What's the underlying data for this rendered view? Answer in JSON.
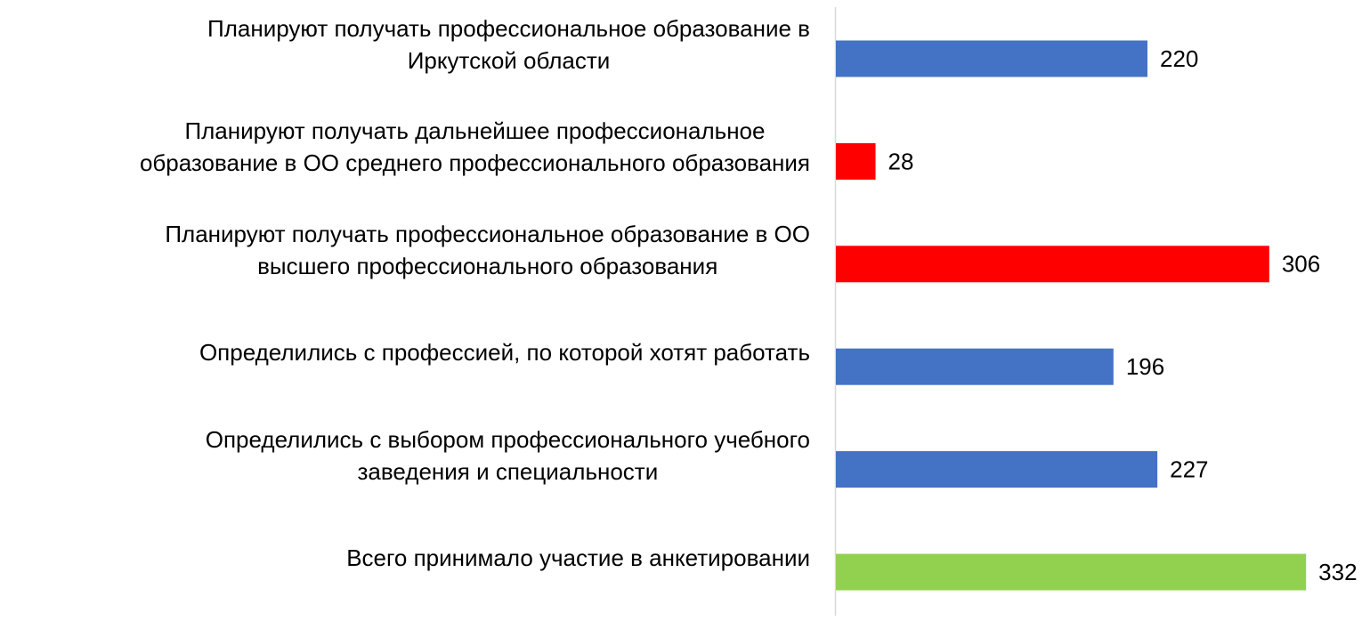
{
  "chart_data": {
    "type": "barh",
    "categories": [
      "Планируют получать профессиональное образование в\nИркутской области",
      "Планируют получать дальнейшее профессиональное\nобразование в ОО среднего профессионального образования",
      "Планируют получать профессиональное образование в ОО\nвысшего профессионального образования",
      "Определились с профессией, по которой хотят работать",
      "Определились с выбором профессионального учебного\nзаведения и специальности",
      "Всего принимало участие в анкетировании"
    ],
    "values": [
      220,
      28,
      306,
      196,
      227,
      332
    ],
    "colors": [
      "#4472c4",
      "#ff0000",
      "#ff0000",
      "#4472c4",
      "#4472c4",
      "#92d050"
    ]
  }
}
